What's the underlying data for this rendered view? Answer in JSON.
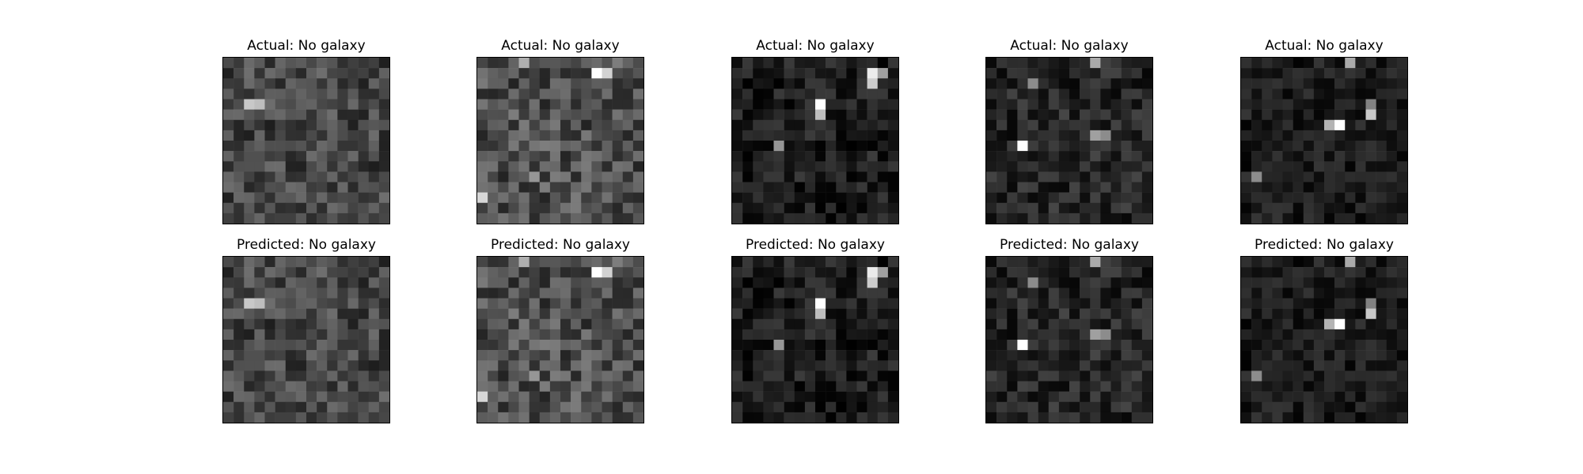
{
  "figure": {
    "panels": [
      {
        "id": "a1",
        "title": "Actual: No galaxy"
      },
      {
        "id": "a2",
        "title": "Actual: No galaxy"
      },
      {
        "id": "a3",
        "title": "Actual: No galaxy"
      },
      {
        "id": "a4",
        "title": "Actual: No galaxy"
      },
      {
        "id": "a5",
        "title": "Actual: No galaxy"
      },
      {
        "id": "p1",
        "title": "Predicted: No galaxy"
      },
      {
        "id": "p2",
        "title": "Predicted: No galaxy"
      },
      {
        "id": "p3",
        "title": "Predicted: No galaxy"
      },
      {
        "id": "p4",
        "title": "Predicted: No galaxy"
      },
      {
        "id": "p5",
        "title": "Predicted: No galaxy"
      }
    ],
    "image_grid": {
      "cells_per_side": 16,
      "colormap": "gray"
    }
  }
}
